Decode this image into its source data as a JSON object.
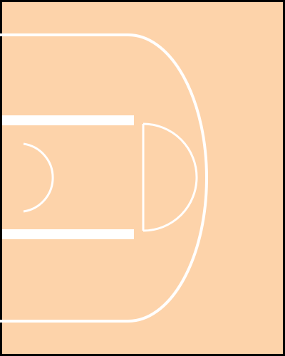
{
  "court": {
    "colors": {
      "floor": "#FDD3AA",
      "lines": "#FFFFFF",
      "border": "#000000"
    },
    "features": [
      "three-point-line",
      "painted-lane",
      "free-throw-line",
      "free-throw-circle",
      "restricted-area-arc"
    ]
  }
}
